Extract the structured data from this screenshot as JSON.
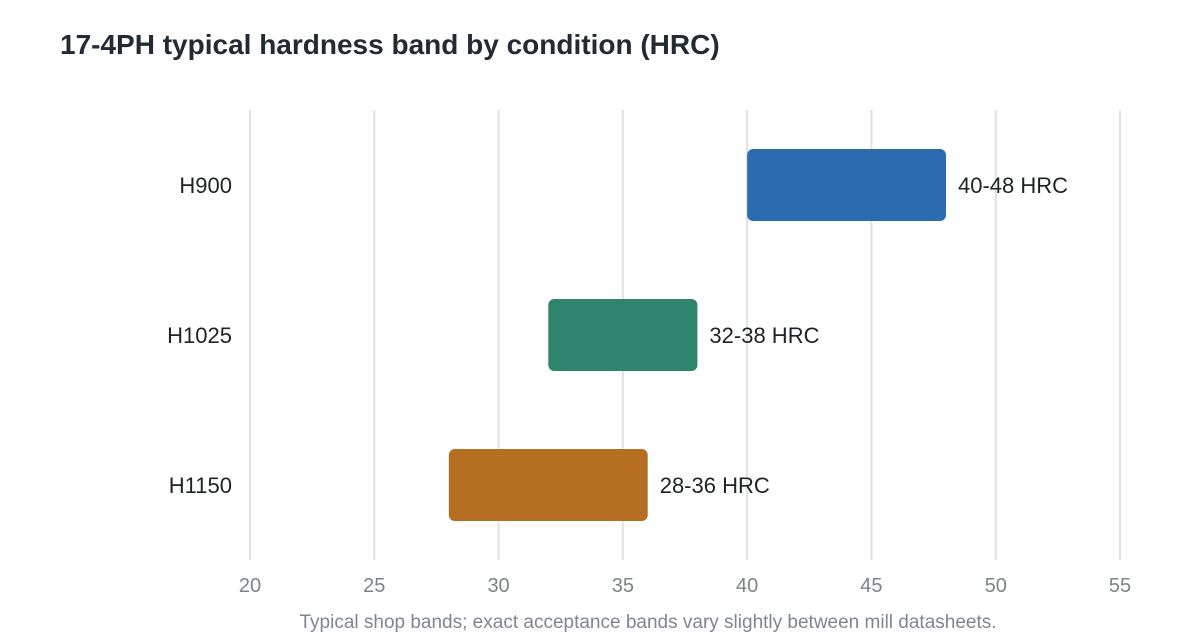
{
  "chart_data": {
    "type": "bar",
    "orientation": "horizontal",
    "bar_style": "floating-range",
    "title": "17-4PH typical hardness band by condition (HRC)",
    "footnote": "Typical shop bands; exact acceptance bands vary slightly between mill datasheets.",
    "categories": [
      "H900",
      "H1025",
      "H1150"
    ],
    "ranges": [
      {
        "category": "H900",
        "low": 40,
        "high": 48,
        "label": "40-48 HRC",
        "color": "#2b6cb0"
      },
      {
        "category": "H1025",
        "low": 32,
        "high": 38,
        "label": "32-38 HRC",
        "color": "#2e846c"
      },
      {
        "category": "H1150",
        "low": 28,
        "high": 36,
        "label": "28-36 HRC",
        "color": "#b56e22"
      }
    ],
    "xlim": [
      20,
      55
    ],
    "xticks": [
      20,
      25,
      30,
      35,
      40,
      45,
      50,
      55
    ],
    "grid": "vertical",
    "legend": "none"
  }
}
